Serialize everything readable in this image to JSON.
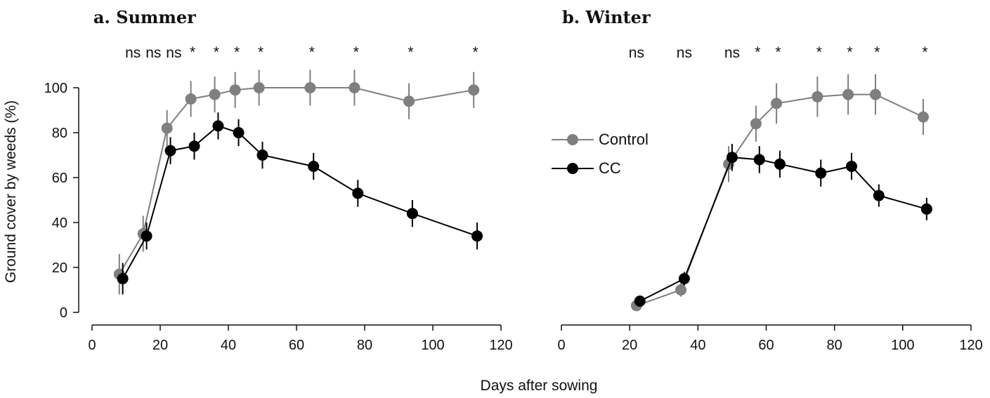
{
  "chart_data": [
    {
      "type": "line",
      "title": "a. Summer",
      "xlabel": "Days after sowing",
      "ylabel": "Ground cover by weeds (%)",
      "xlim": [
        0,
        120
      ],
      "ylim": [
        0,
        100
      ],
      "xticks": [
        "0",
        "20",
        "40",
        "60",
        "80",
        "100",
        "120"
      ],
      "yticks": [
        "0",
        "20",
        "40",
        "60",
        "80",
        "100"
      ],
      "grid": false,
      "significance": [
        {
          "x": 12,
          "label": "ns"
        },
        {
          "x": 18,
          "label": "ns"
        },
        {
          "x": 24,
          "label": "ns"
        },
        {
          "x": 29.5,
          "label": "*"
        },
        {
          "x": 36.5,
          "label": "*"
        },
        {
          "x": 42.5,
          "label": "*"
        },
        {
          "x": 49.5,
          "label": "*"
        },
        {
          "x": 64.5,
          "label": "*"
        },
        {
          "x": 77.5,
          "label": "*"
        },
        {
          "x": 93.5,
          "label": "*"
        },
        {
          "x": 112.5,
          "label": "*"
        }
      ],
      "series": [
        {
          "name": "Control",
          "color": "#7f7f7f",
          "x": [
            8,
            15,
            22,
            29,
            36,
            42,
            49,
            64,
            77,
            93,
            112
          ],
          "y": [
            17,
            35,
            82,
            95,
            97,
            99,
            100,
            100,
            100,
            94,
            99
          ],
          "err": [
            9,
            8,
            8,
            8,
            8,
            8,
            8,
            8,
            8,
            8,
            8
          ]
        },
        {
          "name": "CC",
          "color": "#000000",
          "x": [
            9,
            16,
            23,
            30,
            37,
            43,
            50,
            65,
            78,
            94,
            113
          ],
          "y": [
            15,
            34,
            72,
            74,
            83,
            80,
            70,
            65,
            53,
            44,
            34
          ],
          "err": [
            7,
            6,
            6,
            6,
            6,
            6,
            6,
            6,
            6,
            6,
            6
          ]
        }
      ]
    },
    {
      "type": "line",
      "title": "b. Winter",
      "xlabel": "Days after sowing",
      "ylabel": "",
      "xlim": [
        0,
        120
      ],
      "ylim": [
        0,
        100
      ],
      "xticks": [
        "0",
        "20",
        "40",
        "60",
        "80",
        "100",
        "120"
      ],
      "grid": false,
      "legend": {
        "position": "left",
        "entries": [
          "Control",
          "CC"
        ]
      },
      "significance": [
        {
          "x": 22,
          "label": "ns"
        },
        {
          "x": 36,
          "label": "ns"
        },
        {
          "x": 50,
          "label": "ns"
        },
        {
          "x": 57.5,
          "label": "*"
        },
        {
          "x": 63.5,
          "label": "*"
        },
        {
          "x": 75.5,
          "label": "*"
        },
        {
          "x": 84.5,
          "label": "*"
        },
        {
          "x": 92.5,
          "label": "*"
        },
        {
          "x": 106.5,
          "label": "*"
        }
      ],
      "series": [
        {
          "name": "Control",
          "color": "#7f7f7f",
          "x": [
            22,
            35,
            49,
            57,
            63,
            75,
            84,
            92,
            106
          ],
          "y": [
            3,
            10,
            66,
            84,
            93,
            96,
            97,
            97,
            87
          ],
          "err": [
            1.5,
            3,
            8,
            8,
            9,
            9,
            9,
            9,
            8
          ]
        },
        {
          "name": "CC",
          "color": "#000000",
          "x": [
            23,
            36,
            50,
            58,
            64,
            76,
            85,
            93,
            107
          ],
          "y": [
            5,
            15,
            69,
            68,
            66,
            62,
            65,
            52,
            46
          ],
          "err": [
            1.5,
            3,
            6,
            6,
            6,
            6,
            6,
            5,
            5
          ]
        }
      ]
    }
  ]
}
